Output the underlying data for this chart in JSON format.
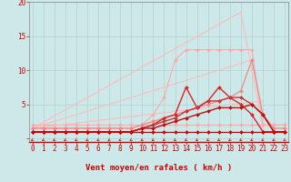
{
  "background_color": "#cce8e8",
  "grid_color": "#aacccc",
  "x_label": "Vent moyen/en rafales ( km/h )",
  "x_ticks": [
    0,
    1,
    2,
    3,
    4,
    5,
    6,
    7,
    8,
    9,
    10,
    11,
    12,
    13,
    14,
    15,
    16,
    17,
    18,
    19,
    20,
    21,
    22,
    23
  ],
  "y_ticks": [
    0,
    5,
    10,
    15,
    20
  ],
  "xlim": [
    -0.3,
    23.3
  ],
  "ylim": [
    -0.5,
    20
  ],
  "lines": [
    {
      "x": [
        0,
        1,
        2,
        3,
        4,
        5,
        6,
        7,
        8,
        9,
        10,
        11,
        12,
        13,
        14,
        15,
        16,
        17,
        18,
        19,
        20,
        21,
        22,
        23
      ],
      "y": [
        2,
        2,
        2,
        2,
        2,
        2,
        2,
        2,
        2,
        2,
        2,
        2,
        2,
        2,
        2,
        2,
        2,
        2,
        2,
        2,
        2,
        2,
        2,
        2
      ],
      "color": "#ffaaaa",
      "lw": 0.8,
      "marker": "D",
      "ms": 2.0,
      "linestyle": "-"
    },
    {
      "x": [
        0,
        19,
        21
      ],
      "y": [
        1.5,
        18.5,
        1.5
      ],
      "color": "#ffbbbb",
      "lw": 0.8,
      "marker": null,
      "ms": 0,
      "linestyle": "-"
    },
    {
      "x": [
        0,
        20
      ],
      "y": [
        1.5,
        11.5
      ],
      "color": "#ffbbbb",
      "lw": 0.8,
      "marker": null,
      "ms": 0,
      "linestyle": "-"
    },
    {
      "x": [
        0,
        21
      ],
      "y": [
        1.5,
        5.5
      ],
      "color": "#ffbbbb",
      "lw": 0.8,
      "marker": null,
      "ms": 0,
      "linestyle": "-"
    },
    {
      "x": [
        0,
        1,
        2,
        3,
        4,
        5,
        6,
        7,
        8,
        9,
        10,
        11,
        12,
        13,
        14,
        15,
        16,
        17,
        18,
        19,
        20,
        21,
        22,
        23
      ],
      "y": [
        1.5,
        1.5,
        1.5,
        1.5,
        1.5,
        1.5,
        1.5,
        1.5,
        1.5,
        1.5,
        2.0,
        3.5,
        6.0,
        11.5,
        13.0,
        13.0,
        13.0,
        13.0,
        13.0,
        13.0,
        13.0,
        2.0,
        2.0,
        2.0
      ],
      "color": "#ffaaaa",
      "lw": 0.8,
      "marker": "D",
      "ms": 2.0,
      "linestyle": "-"
    },
    {
      "x": [
        0,
        1,
        2,
        3,
        4,
        5,
        6,
        7,
        8,
        9,
        10,
        11,
        12,
        13,
        14,
        15,
        16,
        17,
        18,
        19,
        20,
        21,
        22,
        23
      ],
      "y": [
        1.5,
        1.5,
        1.5,
        1.5,
        1.5,
        1.5,
        1.5,
        1.5,
        1.5,
        1.5,
        2.0,
        2.5,
        3.0,
        3.5,
        4.0,
        4.5,
        5.0,
        5.5,
        6.0,
        7.0,
        11.5,
        3.5,
        1.5,
        1.5
      ],
      "color": "#ee8888",
      "lw": 0.9,
      "marker": "D",
      "ms": 2.0,
      "linestyle": "-"
    },
    {
      "x": [
        0,
        1,
        2,
        3,
        4,
        5,
        6,
        7,
        8,
        9,
        10,
        11,
        12,
        13,
        14,
        15,
        16,
        17,
        18,
        19,
        20,
        21,
        22,
        23
      ],
      "y": [
        1,
        1,
        1,
        1,
        1,
        1,
        1,
        1,
        1,
        1,
        1.5,
        2.0,
        3.0,
        3.5,
        7.5,
        4.5,
        5.5,
        7.5,
        6.0,
        5.0,
        3.5,
        1,
        1,
        1
      ],
      "color": "#dd2222",
      "lw": 1.0,
      "marker": "D",
      "ms": 2.0,
      "linestyle": "-"
    },
    {
      "x": [
        0,
        1,
        2,
        3,
        4,
        5,
        6,
        7,
        8,
        9,
        10,
        11,
        12,
        13,
        14,
        15,
        16,
        17,
        18,
        19,
        20,
        21,
        22,
        23
      ],
      "y": [
        1,
        1,
        1,
        1,
        1,
        1,
        1,
        1,
        1,
        1,
        1.5,
        2.0,
        2.5,
        3.0,
        4.0,
        4.5,
        5.5,
        5.5,
        6.0,
        6.0,
        5.0,
        3.5,
        1,
        1
      ],
      "color": "#cc3333",
      "lw": 1.0,
      "marker": "D",
      "ms": 2.0,
      "linestyle": "-"
    },
    {
      "x": [
        0,
        1,
        2,
        3,
        4,
        5,
        6,
        7,
        8,
        9,
        10,
        11,
        12,
        13,
        14,
        15,
        16,
        17,
        18,
        19,
        20,
        21,
        22,
        23
      ],
      "y": [
        1,
        1,
        1,
        1,
        1,
        1,
        1,
        1,
        1,
        1,
        1.5,
        1.5,
        2.0,
        2.5,
        3.0,
        3.5,
        4.0,
        4.5,
        4.5,
        4.5,
        5.0,
        3.5,
        1,
        1
      ],
      "color": "#bb1111",
      "lw": 1.0,
      "marker": "D",
      "ms": 2.0,
      "linestyle": "-"
    },
    {
      "x": [
        0,
        1,
        2,
        3,
        4,
        5,
        6,
        7,
        8,
        9,
        10,
        11,
        12,
        13,
        14,
        15,
        16,
        17,
        18,
        19,
        20,
        21,
        22,
        23
      ],
      "y": [
        1,
        1,
        1,
        1,
        1,
        1,
        1,
        1,
        1,
        1,
        1,
        1,
        1,
        1,
        1,
        1,
        1,
        1,
        1,
        1,
        1,
        1,
        1,
        1
      ],
      "color": "#cc0000",
      "lw": 0.9,
      "marker": "D",
      "ms": 2.0,
      "linestyle": "-"
    }
  ],
  "tick_label_color": "#cc0000",
  "axis_label_color": "#cc0000",
  "label_fontsize": 6.5,
  "tick_fontsize": 5.5
}
